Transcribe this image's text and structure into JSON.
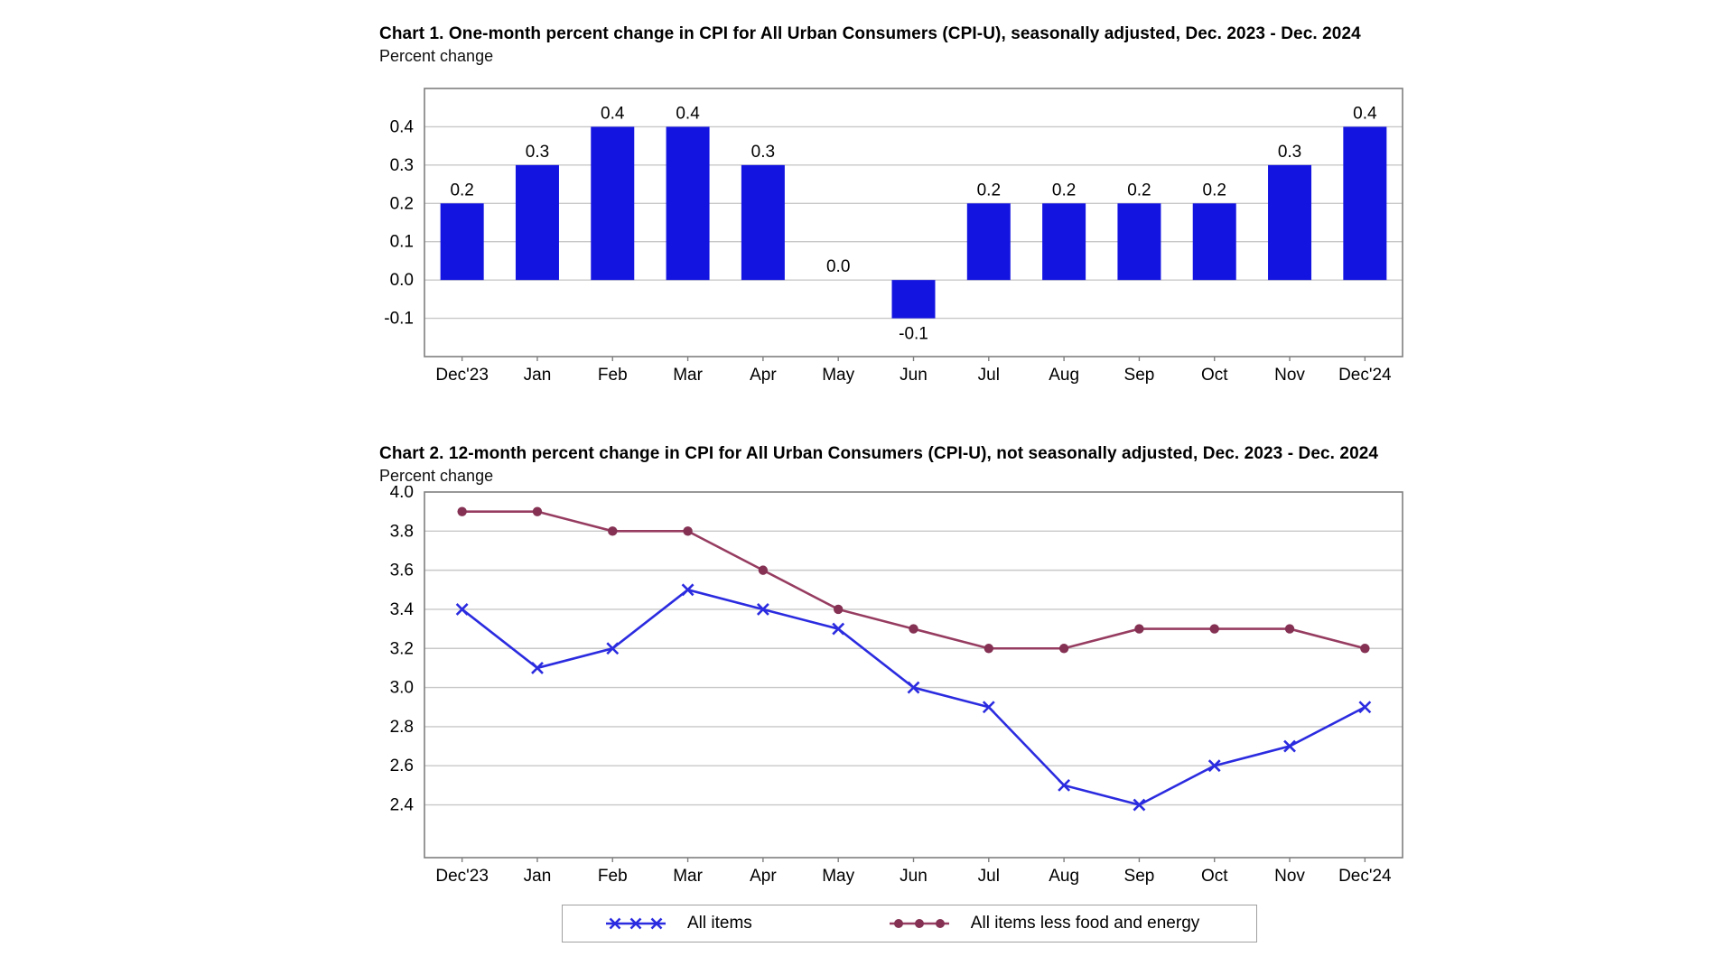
{
  "page": {
    "background": "#ffffff"
  },
  "chart_data": [
    {
      "id": "chart1",
      "type": "bar",
      "title": "Chart 1. One-month percent change in CPI for All Urban Consumers (CPI-U), seasonally adjusted, Dec. 2023 - Dec. 2024",
      "ylabel": "Percent change",
      "categories": [
        "Dec'23",
        "Jan",
        "Feb",
        "Mar",
        "Apr",
        "May",
        "Jun",
        "Jul",
        "Aug",
        "Sep",
        "Oct",
        "Nov",
        "Dec'24"
      ],
      "values": [
        0.2,
        0.3,
        0.4,
        0.4,
        0.3,
        0.0,
        -0.1,
        0.2,
        0.2,
        0.2,
        0.2,
        0.3,
        0.4
      ],
      "ylim": [
        -0.2,
        0.5
      ],
      "yticks": [
        -0.1,
        0.0,
        0.1,
        0.2,
        0.3,
        0.4
      ],
      "grid": true,
      "data_labels": true,
      "bar_color": "#1414e0"
    },
    {
      "id": "chart2",
      "type": "line",
      "title": "Chart 2. 12-month percent change in CPI for All Urban Consumers (CPI-U), not seasonally adjusted, Dec. 2023 - Dec. 2024",
      "ylabel": "Percent change",
      "categories": [
        "Dec'23",
        "Jan",
        "Feb",
        "Mar",
        "Apr",
        "May",
        "Jun",
        "Jul",
        "Aug",
        "Sep",
        "Oct",
        "Nov",
        "Dec'24"
      ],
      "series": [
        {
          "name": "All items",
          "marker": "x",
          "color": "#2b2be0",
          "values": [
            3.4,
            3.1,
            3.2,
            3.5,
            3.4,
            3.3,
            3.0,
            2.9,
            2.5,
            2.4,
            2.6,
            2.7,
            2.9
          ]
        },
        {
          "name": "All items less food and energy",
          "marker": "dot",
          "color": "#963c60",
          "marker_color": "#843153",
          "values": [
            3.9,
            3.9,
            3.8,
            3.8,
            3.6,
            3.4,
            3.3,
            3.2,
            3.2,
            3.3,
            3.3,
            3.3,
            3.2
          ]
        }
      ],
      "ylim": [
        2.13,
        4.0
      ],
      "yticks": [
        2.4,
        2.6,
        2.8,
        3.0,
        3.2,
        3.4,
        3.6,
        3.8,
        4.0
      ],
      "grid": true,
      "legend_position": "bottom"
    }
  ],
  "styles": {
    "grid_color": "#c8c8c8",
    "frame_color": "#7f7f7f",
    "tick_color": "#7f7f7f",
    "text_color": "#000000"
  }
}
